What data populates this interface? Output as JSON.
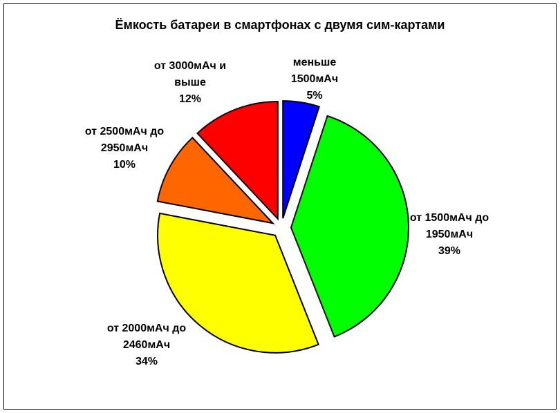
{
  "chart_data": {
    "type": "pie",
    "title": "Ёмкость батареи в смартфонах с двумя сим-картами",
    "categories": [
      "меньше 1500мАч",
      "от 1500мАч до 1950мАч",
      "от 2000мАч до 2460мАч",
      "от 2500мАч до 2950мАч",
      "от 3000мАч и выше"
    ],
    "values": [
      5,
      39,
      34,
      10,
      12
    ],
    "value_labels": [
      "5%",
      "39%",
      "34%",
      "10%",
      "12%"
    ],
    "colors": [
      "#0000ff",
      "#00ff00",
      "#ffff00",
      "#ff6600",
      "#ff0000"
    ]
  }
}
